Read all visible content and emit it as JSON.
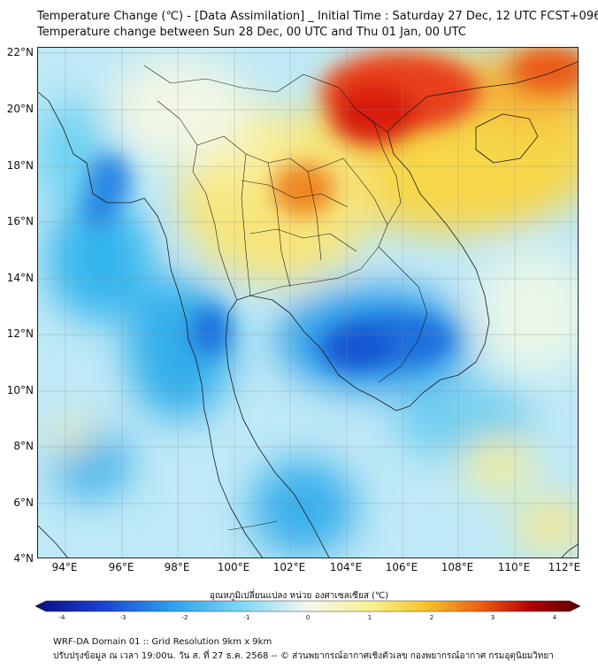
{
  "title": {
    "line1": "Temperature Change (℃) - [Data Assimilation] _ Initial Time : Saturday 27 Dec, 12 UTC FCST+096",
    "line2": "Temperature change between Sun 28 Dec, 00 UTC and Thu 01 Jan, 00 UTC"
  },
  "map": {
    "lat_labels": [
      "22°N",
      "20°N",
      "18°N",
      "16°N",
      "14°N",
      "12°N",
      "10°N",
      "8°N",
      "6°N",
      "4°N"
    ],
    "lon_labels": [
      "94°E",
      "96°E",
      "98°E",
      "100°E",
      "102°E",
      "104°E",
      "106°E",
      "108°E",
      "110°E",
      "112°E"
    ],
    "lat_range": [
      4,
      22
    ],
    "lon_range": [
      93,
      112.3
    ]
  },
  "colorbar": {
    "title": "อุณหภูมิเปลี่ยนแปลง หน่วย องศาเซลเซียส (℃)",
    "ticks": [
      "-4",
      "-3",
      "-2",
      "-1",
      "0",
      "1",
      "2",
      "3",
      "4"
    ],
    "range": [
      -4,
      4
    ],
    "colors": [
      "#0b0b82",
      "#1a3fd6",
      "#2aa0ee",
      "#7fd8f5",
      "#f4f8f0",
      "#f9f08a",
      "#f5c224",
      "#ee5a12",
      "#b00000",
      "#5a0000"
    ]
  },
  "footer": {
    "line1": "WRF-DA Domain 01 :: Grid Resolution 9km x 9km",
    "line2": "ปรับปรุงข้อมูล ณ เวลา 19:00น. วัน ส. ที่ 27 ธ.ค. 2568 -- © ส่วนพยากรณ์อากาศเชิงตัวเลข กองพยากรณ์อากาศ กรมอุตุนิยมวิทยา"
  }
}
